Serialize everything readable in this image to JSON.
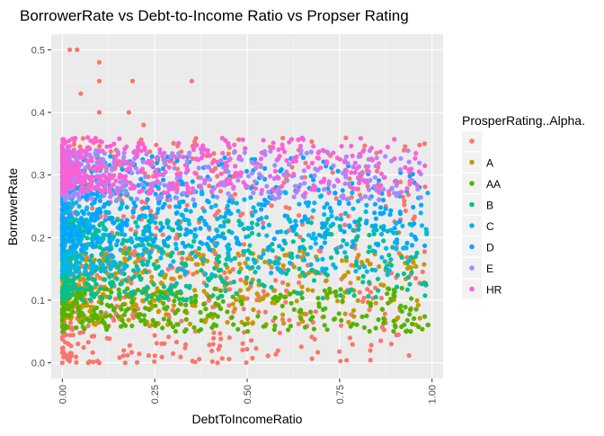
{
  "chart_data": {
    "type": "scatter",
    "title": "BorrowerRate vs Debt-to-Income Ratio vs Propser Rating",
    "xlabel": "DebtToIncomeRatio",
    "ylabel": "BorrowerRate",
    "xlim": [
      -0.03,
      1.03
    ],
    "ylim": [
      -0.025,
      0.525
    ],
    "x_ticks": [
      "0.00",
      "0.25",
      "0.50",
      "0.75",
      "1.00"
    ],
    "y_ticks": [
      "0.0",
      "0.1",
      "0.2",
      "0.3",
      "0.4",
      "0.5"
    ],
    "grid": true,
    "legend_position": "right",
    "legend_title": "ProsperRating..Alpha.",
    "series": [
      {
        "name": "",
        "color": "#F8766D",
        "x_range": [
          0.0,
          0.99
        ],
        "y_range": [
          0.0,
          0.36
        ],
        "outliers": [
          [
            0.02,
            0.5
          ],
          [
            0.04,
            0.5
          ],
          [
            0.1,
            0.48
          ],
          [
            0.1,
            0.45
          ],
          [
            0.19,
            0.45
          ],
          [
            0.35,
            0.45
          ],
          [
            0.1,
            0.4
          ],
          [
            0.18,
            0.4
          ],
          [
            0.05,
            0.43
          ],
          [
            0.22,
            0.38
          ],
          [
            0.0,
            0.0
          ],
          [
            0.07,
            0.0
          ],
          [
            0.1,
            0.0
          ],
          [
            0.17,
            0.0
          ],
          [
            0.42,
            0.0
          ],
          [
            0.89,
            0.03
          ],
          [
            0.9,
            0.06
          ],
          [
            0.98,
            0.35
          ]
        ]
      },
      {
        "name": "A",
        "color": "#C49A00",
        "x_range": [
          0.0,
          0.99
        ],
        "y_range": [
          0.06,
          0.18
        ]
      },
      {
        "name": "AA",
        "color": "#53B400",
        "x_range": [
          0.0,
          0.99
        ],
        "y_range": [
          0.05,
          0.12
        ]
      },
      {
        "name": "B",
        "color": "#00C094",
        "x_range": [
          0.0,
          0.99
        ],
        "y_range": [
          0.1,
          0.23
        ]
      },
      {
        "name": "C",
        "color": "#00B6EB",
        "x_range": [
          0.0,
          0.99
        ],
        "y_range": [
          0.14,
          0.28
        ]
      },
      {
        "name": "D",
        "color": "#06A4FF",
        "x_range": [
          0.0,
          0.99
        ],
        "y_range": [
          0.18,
          0.33
        ]
      },
      {
        "name": "E",
        "color": "#A58AFF",
        "x_range": [
          0.0,
          0.99
        ],
        "y_range": [
          0.26,
          0.34
        ]
      },
      {
        "name": "HR",
        "color": "#FB61D7",
        "x_range": [
          0.0,
          0.99
        ],
        "y_range": [
          0.27,
          0.36
        ]
      }
    ]
  }
}
